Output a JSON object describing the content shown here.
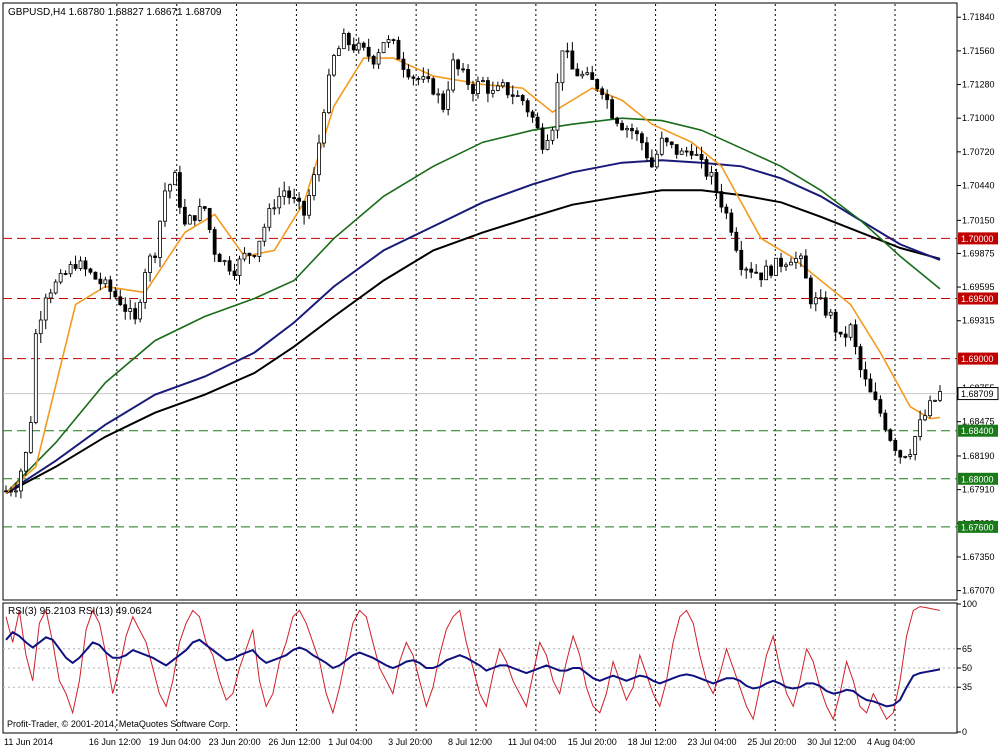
{
  "title": "GBPUSD,H4  1.68780  1.68827  1.68671  1.68709",
  "copyright": "Profit-Trader, © 2001-2014, MetaQuotes Software Corp.",
  "colors": {
    "candle": "#000000",
    "ma_orange": "#f39a1e",
    "ma_green": "#1a6b1a",
    "ma_navy": "#1a1a7a",
    "ma_black": "#000000",
    "resistance": "#c00000",
    "support": "#1a7a1a",
    "rsi3": "#d0202a",
    "rsi13": "#101080"
  },
  "chart_data": [
    {
      "type": "candlestick",
      "symbol": "GBPUSD",
      "timeframe": "H4",
      "ylim": [
        1.67,
        1.7195
      ],
      "y_ticks": [
        "1.71840",
        "1.71560",
        "1.71280",
        "1.71000",
        "1.70720",
        "1.70440",
        "1.70150",
        "1.69875",
        "1.69595",
        "1.69315",
        "1.68755",
        "1.68475",
        "1.68190",
        "1.67910",
        "1.67630",
        "1.67350",
        "1.67070"
      ],
      "x_ticks": [
        "11 Jun 2014",
        "16 Jun 12:00",
        "19 Jun 04:00",
        "23 Jun 20:00",
        "26 Jun 12:00",
        "1 Jul 04:00",
        "3 Jul 20:00",
        "8 Jul 12:00",
        "11 Jul 04:00",
        "15 Jul 20:00",
        "18 Jul 12:00",
        "23 Jul 04:00",
        "25 Jul 20:00",
        "30 Jul 12:00",
        "4 Aug 04:00"
      ],
      "current_price": "1.68709",
      "horizontal_levels": [
        {
          "price": 1.7,
          "label": "1.70000",
          "kind": "resistance"
        },
        {
          "price": 1.695,
          "label": "1.69500",
          "kind": "resistance"
        },
        {
          "price": 1.69,
          "label": "1.69000",
          "kind": "resistance"
        },
        {
          "price": 1.684,
          "label": "1.68400",
          "kind": "support"
        },
        {
          "price": 1.68,
          "label": "1.68000",
          "kind": "support"
        },
        {
          "price": 1.676,
          "label": "1.67600",
          "kind": "support"
        }
      ],
      "close_path": [
        [
          0,
          1.679
        ],
        [
          2,
          1.6795
        ],
        [
          4,
          1.682
        ],
        [
          5,
          1.685
        ],
        [
          6,
          1.692
        ],
        [
          8,
          1.6955
        ],
        [
          11,
          1.6965
        ],
        [
          14,
          1.698
        ],
        [
          17,
          1.697
        ],
        [
          20,
          1.696
        ],
        [
          23,
          1.6948
        ],
        [
          26,
          1.693
        ],
        [
          28,
          1.6975
        ],
        [
          30,
          1.699
        ],
        [
          32,
          1.704
        ],
        [
          34,
          1.705
        ],
        [
          36,
          1.701
        ],
        [
          38,
          1.702
        ],
        [
          40,
          1.7025
        ],
        [
          42,
          1.699
        ],
        [
          44,
          1.698
        ],
        [
          46,
          1.6975
        ],
        [
          48,
          1.6985
        ],
        [
          50,
          1.699
        ],
        [
          52,
          1.701
        ],
        [
          54,
          1.703
        ],
        [
          56,
          1.704
        ],
        [
          58,
          1.703
        ],
        [
          60,
          1.702
        ],
        [
          62,
          1.705
        ],
        [
          64,
          1.711
        ],
        [
          66,
          1.715
        ],
        [
          68,
          1.7165
        ],
        [
          70,
          1.716
        ],
        [
          72,
          1.7155
        ],
        [
          74,
          1.715
        ],
        [
          76,
          1.7165
        ],
        [
          78,
          1.716
        ],
        [
          80,
          1.7145
        ],
        [
          82,
          1.7135
        ],
        [
          84,
          1.713
        ],
        [
          86,
          1.7125
        ],
        [
          88,
          1.711
        ],
        [
          90,
          1.7145
        ],
        [
          92,
          1.7135
        ],
        [
          94,
          1.7125
        ],
        [
          96,
          1.713
        ],
        [
          98,
          1.712
        ],
        [
          100,
          1.7125
        ],
        [
          102,
          1.712
        ],
        [
          104,
          1.7115
        ],
        [
          106,
          1.71
        ],
        [
          108,
          1.708
        ],
        [
          110,
          1.7095
        ],
        [
          112,
          1.716
        ],
        [
          114,
          1.714
        ],
        [
          116,
          1.7135
        ],
        [
          118,
          1.713
        ],
        [
          120,
          1.7125
        ],
        [
          122,
          1.7105
        ],
        [
          124,
          1.7095
        ],
        [
          126,
          1.709
        ],
        [
          128,
          1.708
        ],
        [
          130,
          1.706
        ],
        [
          132,
          1.708
        ],
        [
          134,
          1.7075
        ],
        [
          136,
          1.707
        ],
        [
          138,
          1.7075
        ],
        [
          140,
          1.706
        ],
        [
          142,
          1.705
        ],
        [
          144,
          1.703
        ],
        [
          146,
          1.701
        ],
        [
          148,
          1.698
        ],
        [
          150,
          1.6975
        ],
        [
          152,
          1.697
        ],
        [
          154,
          1.6975
        ],
        [
          156,
          1.698
        ],
        [
          158,
          1.6985
        ],
        [
          160,
          1.698
        ],
        [
          162,
          1.695
        ],
        [
          164,
          1.6945
        ],
        [
          166,
          1.6935
        ],
        [
          168,
          1.6915
        ],
        [
          170,
          1.6925
        ],
        [
          172,
          1.689
        ],
        [
          174,
          1.687
        ],
        [
          176,
          1.6855
        ],
        [
          178,
          1.6835
        ],
        [
          180,
          1.682
        ],
        [
          182,
          1.6825
        ],
        [
          184,
          1.6845
        ],
        [
          186,
          1.686
        ],
        [
          188,
          1.6871
        ]
      ],
      "ma_fast_path": [
        [
          0,
          1.6788
        ],
        [
          6,
          1.681
        ],
        [
          14,
          1.6945
        ],
        [
          20,
          1.696
        ],
        [
          28,
          1.6955
        ],
        [
          36,
          1.7005
        ],
        [
          42,
          1.702
        ],
        [
          48,
          1.6985
        ],
        [
          54,
          1.699
        ],
        [
          60,
          1.703
        ],
        [
          66,
          1.711
        ],
        [
          72,
          1.715
        ],
        [
          78,
          1.715
        ],
        [
          86,
          1.7135
        ],
        [
          96,
          1.7128
        ],
        [
          104,
          1.7125
        ],
        [
          110,
          1.7105
        ],
        [
          118,
          1.7125
        ],
        [
          124,
          1.7115
        ],
        [
          130,
          1.7095
        ],
        [
          138,
          1.708
        ],
        [
          144,
          1.706
        ],
        [
          152,
          1.7
        ],
        [
          158,
          1.6985
        ],
        [
          164,
          1.6965
        ],
        [
          170,
          1.6945
        ],
        [
          176,
          1.6905
        ],
        [
          182,
          1.686
        ],
        [
          186,
          1.685
        ],
        [
          188,
          1.6851
        ]
      ],
      "ma_green_path": [
        [
          0,
          1.6788
        ],
        [
          10,
          1.683
        ],
        [
          20,
          1.688
        ],
        [
          30,
          1.6915
        ],
        [
          40,
          1.6935
        ],
        [
          50,
          1.695
        ],
        [
          58,
          1.6965
        ],
        [
          66,
          1.7
        ],
        [
          76,
          1.7035
        ],
        [
          86,
          1.706
        ],
        [
          96,
          1.708
        ],
        [
          106,
          1.709
        ],
        [
          114,
          1.7095
        ],
        [
          124,
          1.71
        ],
        [
          132,
          1.7098
        ],
        [
          140,
          1.709
        ],
        [
          148,
          1.7075
        ],
        [
          156,
          1.706
        ],
        [
          164,
          1.704
        ],
        [
          172,
          1.7015
        ],
        [
          180,
          1.6985
        ],
        [
          188,
          1.6958
        ]
      ],
      "ma_navy_path": [
        [
          0,
          1.6788
        ],
        [
          10,
          1.6815
        ],
        [
          20,
          1.6845
        ],
        [
          30,
          1.687
        ],
        [
          40,
          1.6885
        ],
        [
          50,
          1.6905
        ],
        [
          58,
          1.693
        ],
        [
          66,
          1.696
        ],
        [
          76,
          1.699
        ],
        [
          86,
          1.701
        ],
        [
          96,
          1.703
        ],
        [
          106,
          1.7045
        ],
        [
          114,
          1.7055
        ],
        [
          124,
          1.7063
        ],
        [
          132,
          1.7065
        ],
        [
          140,
          1.7063
        ],
        [
          148,
          1.706
        ],
        [
          156,
          1.705
        ],
        [
          164,
          1.7035
        ],
        [
          172,
          1.7015
        ],
        [
          180,
          1.6995
        ],
        [
          188,
          1.6982
        ]
      ],
      "ma_black_path": [
        [
          0,
          1.6788
        ],
        [
          10,
          1.681
        ],
        [
          20,
          1.6835
        ],
        [
          30,
          1.6855
        ],
        [
          40,
          1.687
        ],
        [
          50,
          1.6888
        ],
        [
          58,
          1.691
        ],
        [
          66,
          1.6935
        ],
        [
          76,
          1.6965
        ],
        [
          86,
          1.699
        ],
        [
          96,
          1.7005
        ],
        [
          106,
          1.7018
        ],
        [
          114,
          1.7028
        ],
        [
          124,
          1.7035
        ],
        [
          132,
          1.704
        ],
        [
          140,
          1.704
        ],
        [
          148,
          1.7036
        ],
        [
          156,
          1.703
        ],
        [
          164,
          1.7018
        ],
        [
          172,
          1.7005
        ],
        [
          180,
          1.6992
        ],
        [
          188,
          1.6983
        ]
      ]
    },
    {
      "type": "line",
      "indicator_label": "RSI(3) 95.2103  RSI(13) 49.0624",
      "ylim": [
        0,
        100
      ],
      "y_ticks": [
        "100",
        "65",
        "50",
        "35",
        "0"
      ],
      "levels": [
        65,
        50,
        35
      ],
      "series": [
        {
          "name": "RSI(3)",
          "color": "#d0202a",
          "values": [
            90,
            70,
            95,
            60,
            40,
            85,
            95,
            70,
            40,
            30,
            15,
            40,
            80,
            95,
            85,
            60,
            30,
            50,
            75,
            90,
            80,
            70,
            50,
            30,
            20,
            40,
            70,
            85,
            95,
            90,
            70,
            60,
            40,
            25,
            30,
            50,
            65,
            80,
            40,
            20,
            30,
            55,
            70,
            90,
            95,
            85,
            70,
            55,
            30,
            15,
            35,
            60,
            85,
            95,
            90,
            70,
            50,
            40,
            30,
            55,
            70,
            60,
            40,
            20,
            35,
            60,
            80,
            90,
            95,
            70,
            50,
            30,
            20,
            45,
            65,
            55,
            40,
            30,
            20,
            45,
            70,
            60,
            40,
            30,
            55,
            75,
            60,
            35,
            20,
            15,
            30,
            55,
            40,
            25,
            35,
            60,
            45,
            30,
            20,
            40,
            70,
            90,
            95,
            85,
            60,
            40,
            30,
            45,
            65,
            50,
            35,
            20,
            10,
            35,
            60,
            75,
            50,
            30,
            20,
            40,
            65,
            55,
            35,
            20,
            10,
            30,
            55,
            40,
            20,
            15,
            30,
            20,
            10,
            15,
            40,
            75,
            95,
            98,
            97,
            96,
            95
          ]
        },
        {
          "name": "RSI(13)",
          "color": "#101080",
          "values": [
            72,
            78,
            75,
            70,
            66,
            70,
            74,
            72,
            65,
            58,
            54,
            58,
            64,
            70,
            68,
            62,
            58,
            58,
            60,
            64,
            62,
            60,
            58,
            55,
            52,
            56,
            60,
            64,
            70,
            72,
            68,
            64,
            60,
            56,
            57,
            60,
            62,
            64,
            58,
            54,
            56,
            58,
            60,
            64,
            66,
            64,
            60,
            57,
            54,
            50,
            52,
            56,
            60,
            62,
            60,
            58,
            55,
            52,
            50,
            52,
            55,
            56,
            54,
            50,
            50,
            52,
            56,
            58,
            60,
            58,
            55,
            52,
            48,
            50,
            52,
            52,
            50,
            48,
            46,
            48,
            50,
            52,
            50,
            48,
            48,
            50,
            50,
            46,
            42,
            40,
            42,
            44,
            42,
            40,
            42,
            44,
            43,
            40,
            38,
            40,
            42,
            44,
            45,
            44,
            42,
            40,
            38,
            40,
            42,
            42,
            40,
            36,
            34,
            35,
            38,
            40,
            38,
            35,
            34,
            35,
            38,
            38,
            36,
            32,
            30,
            31,
            33,
            32,
            28,
            25,
            24,
            22,
            20,
            21,
            25,
            35,
            44,
            46,
            47,
            48,
            49
          ]
        }
      ]
    }
  ]
}
